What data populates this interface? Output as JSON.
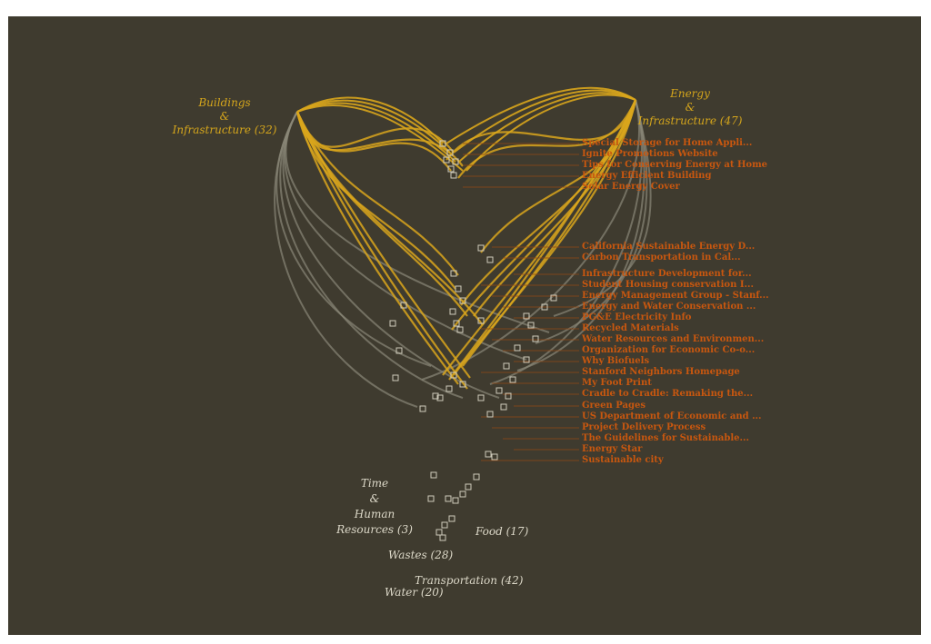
{
  "categories": {
    "buildings": {
      "line1": "Buildings",
      "line2": "&",
      "line3": "Infrastructure (32)"
    },
    "energy": {
      "line1": "Energy",
      "line2": "&",
      "line3": "Infrastructure (47)"
    },
    "time": {
      "line1": "Time",
      "line2": "&",
      "line3": "Human",
      "line4": "Resources (3)"
    },
    "food": "Food (17)",
    "wastes": "Wastes (28)",
    "transportation": "Transportation (42)",
    "water": "Water (20)"
  },
  "group_a": [
    "Special Storage for Home Appli...",
    "Ignite Promotions Website",
    "Tips for Conserving Energy at Home",
    "Energy Efficient Building",
    "Solar Energy Cover"
  ],
  "group_b": [
    "California Sustainable Energy D...",
    "Carbon Transportation in Cal...",
    "Infrastructure Development for...",
    "Student Housing conservation I...",
    "Energy Management Group - Stanf...",
    "Energy and Water Conservation ...",
    "PG&E Electricity Info",
    "Recycled Materials",
    "Water Resources and Environmen...",
    "Organization for Economic Co-o...",
    "Why Biofuels",
    "Stanford Neighbors Homepage",
    "My Foot Print",
    "Cradle to Cradle: Remaking the...",
    "Green Pages",
    "US Department of Economic and ...",
    "Project Delivery Process",
    "The Guidelines for Sustainable...",
    "Energy Star",
    "Sustainable city"
  ],
  "colors": {
    "background": "#3f3b2f",
    "hub_links": "#d9a61c",
    "other_links": "#8a8778",
    "item_text": "#c8570f",
    "hub_label": "#d4a51c",
    "minor_label": "#dcd8c8"
  }
}
